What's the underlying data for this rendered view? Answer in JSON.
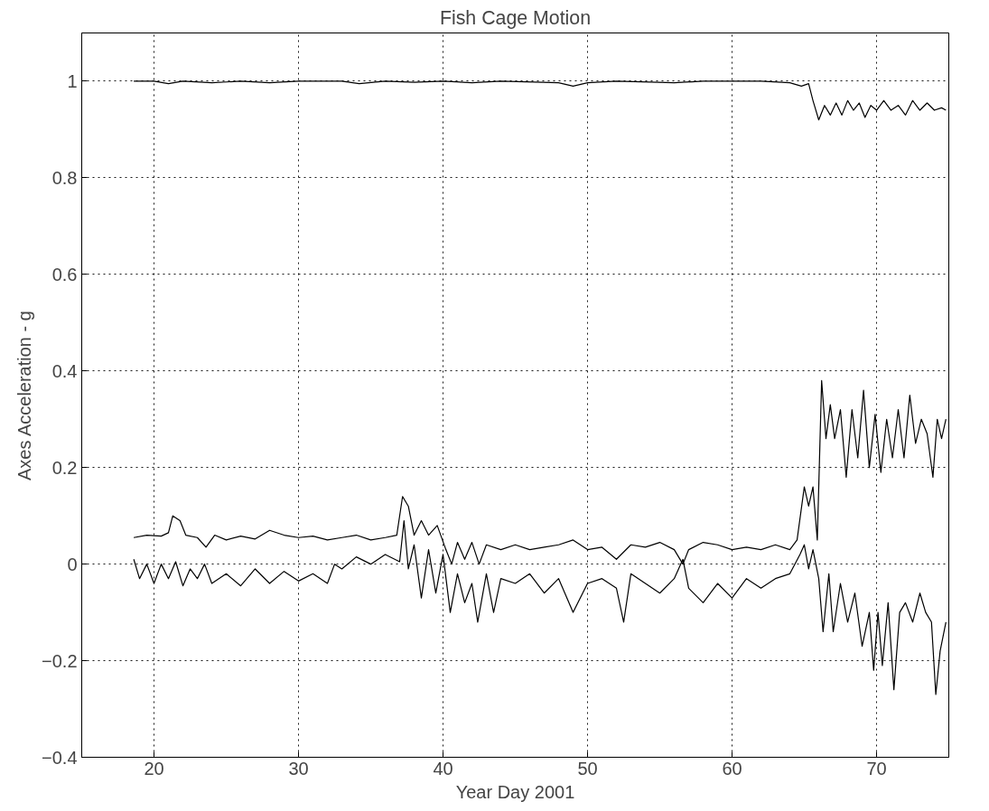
{
  "chart_data": {
    "type": "line",
    "title": "Fish Cage Motion",
    "xlabel": "Year Day 2001",
    "ylabel": "Axes Acceleration - g",
    "xlim": [
      15,
      75
    ],
    "xticks": [
      20,
      30,
      40,
      50,
      60,
      70
    ],
    "ylim": [
      -0.4,
      1.1
    ],
    "yticks": [
      -0.4,
      -0.2,
      0,
      0.2,
      0.4,
      0.6,
      0.8,
      1
    ],
    "grid": true,
    "line_style": "solid",
    "marker": "none",
    "series": [
      {
        "color": "#000000",
        "x": [
          18.6,
          20,
          21,
          22,
          24,
          26,
          28,
          30,
          33,
          34.2,
          36,
          38,
          40,
          42,
          44,
          48,
          49,
          50,
          52,
          56,
          58,
          62,
          64,
          64.8,
          65.3,
          65.6,
          66,
          66.4,
          66.8,
          67.2,
          67.6,
          68,
          68.4,
          68.8,
          69.2,
          69.6,
          70,
          70.5,
          71,
          71.5,
          72,
          72.5,
          73,
          73.5,
          74,
          74.5,
          74.8
        ],
        "values": [
          1.0,
          1.0,
          0.995,
          1.0,
          0.997,
          1.0,
          0.997,
          1.0,
          1.0,
          0.995,
          1.0,
          0.998,
          1.0,
          0.997,
          1.0,
          0.997,
          0.99,
          0.997,
          1.0,
          0.997,
          1.0,
          1.0,
          0.997,
          0.99,
          0.995,
          0.96,
          0.92,
          0.95,
          0.93,
          0.955,
          0.93,
          0.96,
          0.94,
          0.955,
          0.925,
          0.95,
          0.94,
          0.96,
          0.94,
          0.95,
          0.93,
          0.96,
          0.94,
          0.955,
          0.94,
          0.945,
          0.94
        ]
      },
      {
        "color": "#000000",
        "x": [
          18.6,
          19.5,
          20.5,
          21,
          21.3,
          21.8,
          22.2,
          23,
          23.6,
          24.2,
          25,
          26,
          27,
          28,
          29,
          30,
          31,
          32,
          33,
          34,
          35,
          36,
          36.8,
          37.2,
          37.6,
          38,
          38.5,
          39,
          39.6,
          40.2,
          40.6,
          41,
          41.5,
          42,
          42.5,
          43,
          44,
          45,
          46,
          47,
          48,
          49,
          50,
          51,
          52,
          53,
          54,
          55,
          56,
          56.6,
          57,
          58,
          59,
          60,
          61,
          62,
          63,
          64,
          64.5,
          65,
          65.3,
          65.6,
          65.9,
          66.2,
          66.5,
          66.8,
          67.1,
          67.5,
          67.9,
          68.3,
          68.7,
          69.1,
          69.5,
          69.9,
          70.3,
          70.7,
          71.1,
          71.5,
          71.9,
          72.3,
          72.7,
          73.1,
          73.5,
          73.9,
          74.2,
          74.5,
          74.8
        ],
        "values": [
          0.055,
          0.06,
          0.058,
          0.065,
          0.1,
          0.09,
          0.06,
          0.055,
          0.035,
          0.06,
          0.05,
          0.058,
          0.052,
          0.07,
          0.06,
          0.055,
          0.058,
          0.05,
          0.055,
          0.06,
          0.05,
          0.055,
          0.06,
          0.14,
          0.12,
          0.06,
          0.09,
          0.06,
          0.08,
          0.03,
          0.0,
          0.045,
          0.01,
          0.045,
          0.0,
          0.04,
          0.03,
          0.04,
          0.03,
          0.035,
          0.04,
          0.05,
          0.03,
          0.035,
          0.01,
          0.04,
          0.035,
          0.045,
          0.03,
          0.0,
          0.03,
          0.045,
          0.04,
          0.03,
          0.035,
          0.03,
          0.04,
          0.03,
          0.05,
          0.16,
          0.12,
          0.16,
          0.05,
          0.38,
          0.26,
          0.33,
          0.26,
          0.32,
          0.18,
          0.32,
          0.22,
          0.36,
          0.2,
          0.31,
          0.19,
          0.3,
          0.22,
          0.32,
          0.22,
          0.35,
          0.25,
          0.3,
          0.27,
          0.18,
          0.3,
          0.26,
          0.3
        ]
      },
      {
        "color": "#000000",
        "x": [
          18.6,
          19,
          19.5,
          20,
          20.5,
          21,
          21.5,
          22,
          22.5,
          23,
          23.5,
          24,
          25,
          26,
          27,
          28,
          29,
          30,
          31,
          32,
          32.5,
          33,
          34,
          35,
          36,
          37,
          37.3,
          37.6,
          38,
          38.5,
          39,
          39.5,
          40,
          40.5,
          41,
          41.5,
          42,
          42.4,
          43,
          43.5,
          44,
          45,
          46,
          47,
          48,
          49,
          50,
          51,
          52,
          52.5,
          53,
          54,
          55,
          56,
          56.6,
          57,
          58,
          59,
          60,
          61,
          62,
          63,
          64,
          64.7,
          65,
          65.3,
          65.6,
          66,
          66.3,
          66.7,
          67,
          67.5,
          68,
          68.5,
          69,
          69.5,
          69.8,
          70.1,
          70.4,
          70.8,
          71.2,
          71.6,
          72,
          72.5,
          73,
          73.4,
          73.8,
          74.1,
          74.4,
          74.8
        ],
        "values": [
          0.01,
          -0.03,
          0.0,
          -0.04,
          0.0,
          -0.03,
          0.005,
          -0.045,
          -0.01,
          -0.03,
          0.0,
          -0.04,
          -0.02,
          -0.045,
          -0.01,
          -0.04,
          -0.015,
          -0.035,
          -0.02,
          -0.04,
          0.0,
          -0.01,
          0.015,
          0.0,
          0.02,
          0.005,
          0.09,
          -0.01,
          0.04,
          -0.07,
          0.03,
          -0.06,
          0.02,
          -0.1,
          -0.02,
          -0.08,
          -0.04,
          -0.12,
          -0.02,
          -0.1,
          -0.03,
          -0.04,
          -0.02,
          -0.06,
          -0.03,
          -0.1,
          -0.04,
          -0.03,
          -0.05,
          -0.12,
          -0.02,
          -0.04,
          -0.06,
          -0.03,
          0.01,
          -0.05,
          -0.08,
          -0.04,
          -0.07,
          -0.03,
          -0.05,
          -0.03,
          -0.02,
          0.02,
          0.04,
          -0.01,
          0.03,
          -0.03,
          -0.14,
          -0.02,
          -0.14,
          -0.04,
          -0.12,
          -0.06,
          -0.17,
          -0.1,
          -0.22,
          -0.1,
          -0.21,
          -0.08,
          -0.26,
          -0.1,
          -0.08,
          -0.12,
          -0.06,
          -0.1,
          -0.12,
          -0.27,
          -0.18,
          -0.12
        ]
      }
    ]
  }
}
